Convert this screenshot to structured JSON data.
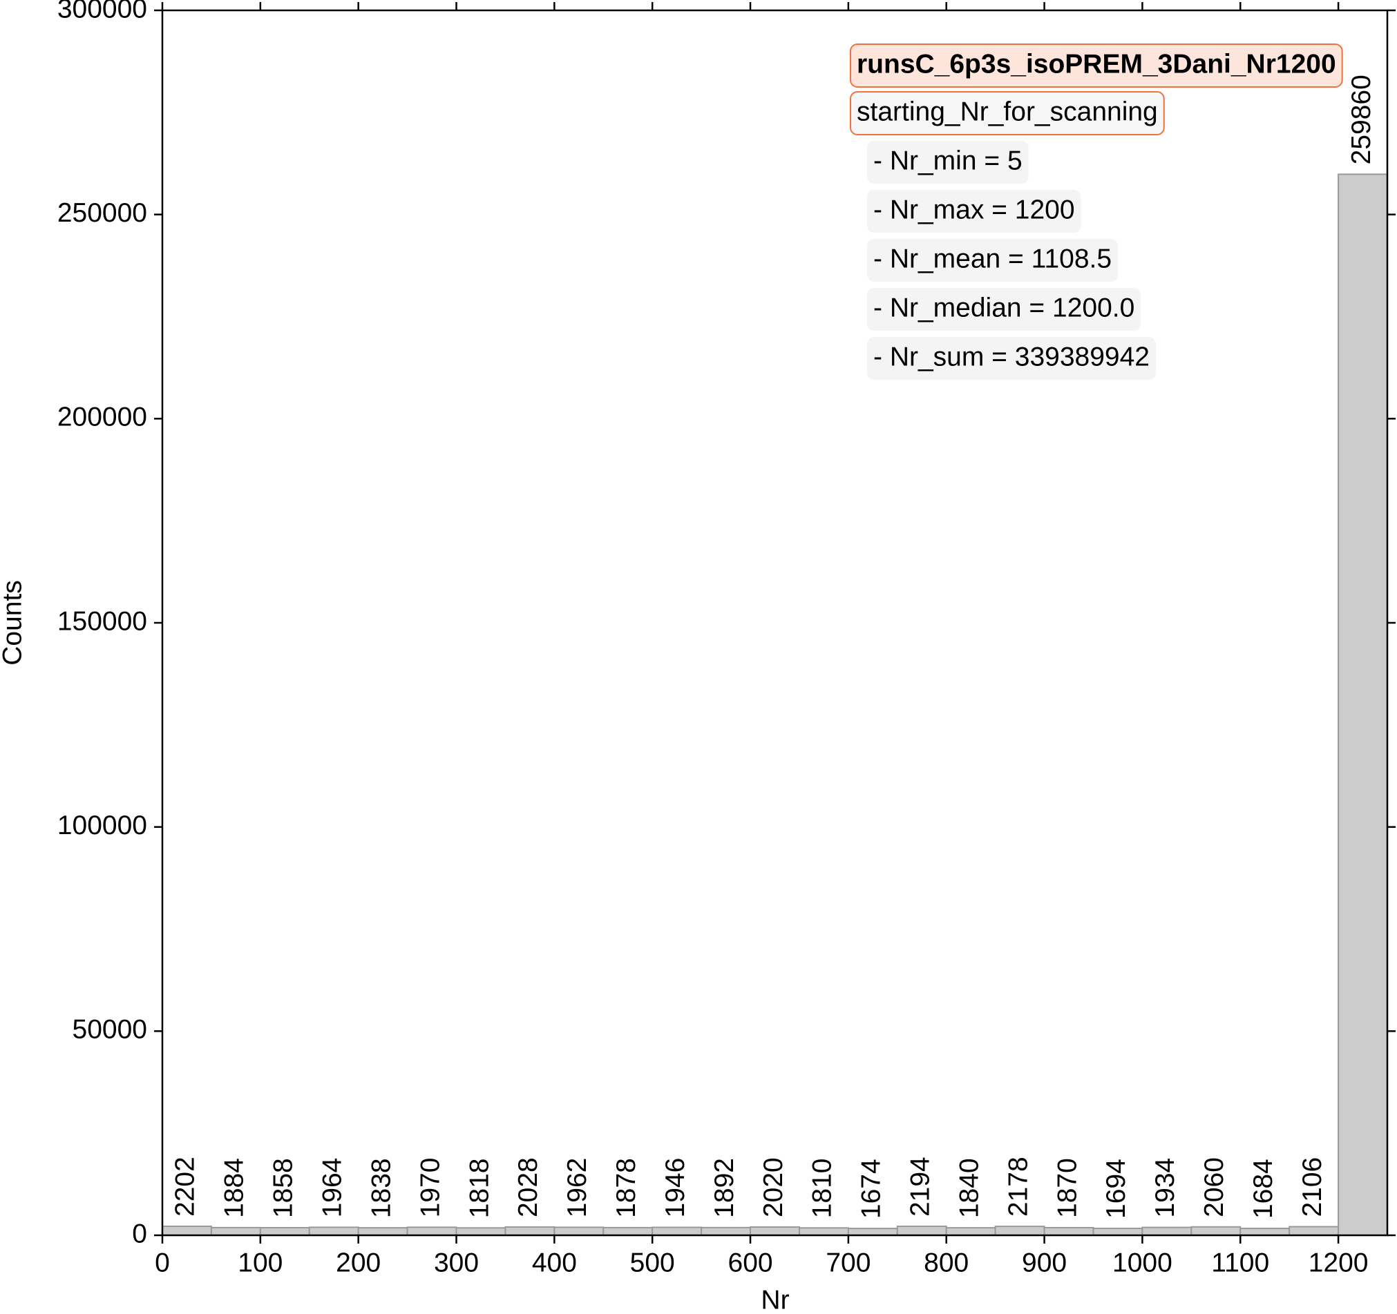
{
  "chart_data": {
    "type": "histogram",
    "xlabel": "Nr",
    "ylabel": "Counts",
    "bins": [
      0,
      50,
      100,
      150,
      200,
      250,
      300,
      350,
      400,
      450,
      500,
      550,
      600,
      650,
      700,
      750,
      800,
      850,
      900,
      950,
      1000,
      1050,
      1100,
      1150,
      1200,
      1250
    ],
    "values": [
      2202,
      1884,
      1858,
      1964,
      1838,
      1970,
      1818,
      2028,
      1962,
      1878,
      1946,
      1892,
      2020,
      1810,
      1674,
      2194,
      1840,
      2178,
      1870,
      1694,
      1934,
      2060,
      1684,
      2106,
      259860
    ],
    "color": "#cccccc",
    "xlim": [
      0,
      1250
    ],
    "xticks": [
      0,
      100,
      200,
      300,
      400,
      500,
      600,
      700,
      800,
      900,
      1000,
      1100,
      1200
    ],
    "ylim": [
      0,
      300000
    ],
    "yticks": [
      0,
      50000,
      100000,
      150000,
      200000,
      250000,
      300000
    ],
    "annotations": {
      "title": "runsC_6p3s_isoPREM_3Dani_Nr1200",
      "subtitle": "starting_Nr_for_scanning",
      "stats": [
        "- Nr_min = 5",
        "- Nr_max = 1200",
        "- Nr_mean = 1108.5",
        "- Nr_median = 1200.0",
        "- Nr_sum = 339389942"
      ]
    }
  }
}
